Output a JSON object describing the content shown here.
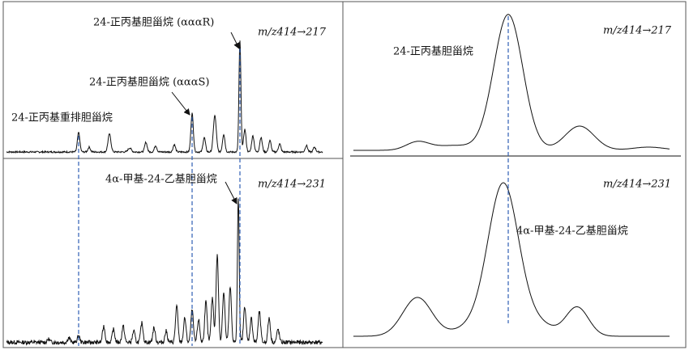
{
  "panels": [
    {
      "ion": "m/z414→217",
      "labels": [
        "24-正丙基胆甾烷 (αααR)",
        "24-正丙基胆甾烷 (αααS)",
        "24-正丙基重排胆甾烷"
      ]
    },
    {
      "ion": "m/z414→231",
      "labels": [
        "4α-甲基-24-乙基胆甾烷"
      ]
    },
    {
      "ion": "m/z414→217",
      "labels": [
        "24-正丙基胆甾烷"
      ]
    },
    {
      "ion": "m/z414→231",
      "labels": [
        "4α-甲基-24-乙基胆甾烷"
      ]
    }
  ]
}
